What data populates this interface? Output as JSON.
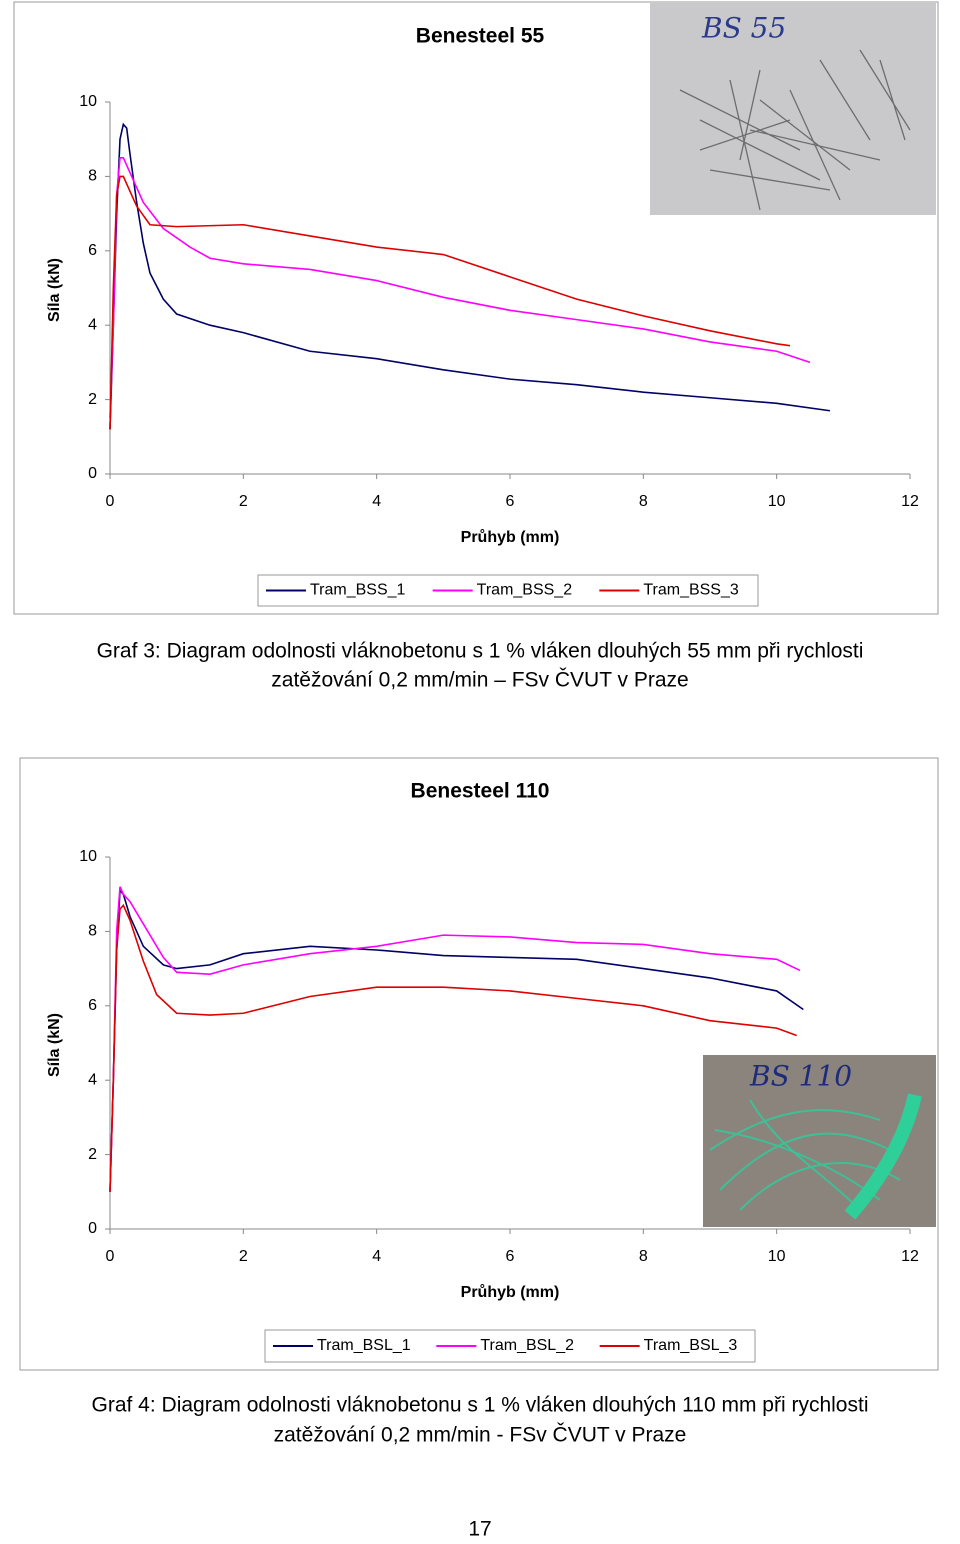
{
  "chart_data": [
    {
      "type": "line",
      "title": "Benesteel 55",
      "ylabel": "Síla (kN)",
      "xlabel": "Průhyb  (mm)",
      "xlim": [
        0,
        12
      ],
      "ylim": [
        0,
        10
      ],
      "xticks": [
        0,
        2,
        4,
        6,
        8,
        10,
        12
      ],
      "yticks": [
        0,
        2,
        4,
        6,
        8,
        10
      ],
      "grid": false,
      "legend": "bottom",
      "photo_label": "BS 55",
      "series": [
        {
          "name": "Tram_BSS_1",
          "color": "#000066",
          "x": [
            0,
            0.05,
            0.1,
            0.15,
            0.2,
            0.25,
            0.3,
            0.4,
            0.5,
            0.6,
            0.8,
            1.0,
            1.5,
            2,
            3,
            4,
            5,
            6,
            7,
            8,
            9,
            10,
            10.8
          ],
          "values": [
            1.2,
            4,
            7,
            9,
            9.4,
            9.3,
            8.6,
            7.3,
            6.2,
            5.4,
            4.7,
            4.3,
            4.0,
            3.8,
            3.3,
            3.1,
            2.8,
            2.55,
            2.4,
            2.2,
            2.05,
            1.9,
            1.7
          ]
        },
        {
          "name": "Tram_BSS_2",
          "color": "#ff00ff",
          "x": [
            0,
            0.05,
            0.1,
            0.15,
            0.2,
            0.3,
            0.5,
            0.8,
            1.2,
            1.5,
            2,
            3,
            4,
            5,
            6,
            7,
            8,
            9,
            10,
            10.5
          ],
          "values": [
            1.5,
            4,
            7.5,
            8.5,
            8.5,
            8.1,
            7.3,
            6.6,
            6.1,
            5.8,
            5.65,
            5.5,
            5.2,
            4.75,
            4.4,
            4.15,
            3.9,
            3.55,
            3.3,
            3.0
          ]
        },
        {
          "name": "Tram_BSS_3",
          "color": "#dd0000",
          "x": [
            0,
            0.05,
            0.1,
            0.15,
            0.2,
            0.3,
            0.4,
            0.6,
            1,
            2,
            3,
            4,
            5,
            6,
            7,
            8,
            9,
            10,
            10.2
          ],
          "values": [
            1.2,
            5,
            7.5,
            8.0,
            8.0,
            7.6,
            7.2,
            6.7,
            6.65,
            6.7,
            6.4,
            6.1,
            5.9,
            5.3,
            4.7,
            4.25,
            3.85,
            3.5,
            3.45
          ]
        }
      ]
    },
    {
      "type": "line",
      "title": "Benesteel 110",
      "ylabel": "Síla (kN)",
      "xlabel": "Průhyb  (mm)",
      "xlim": [
        0,
        12
      ],
      "ylim": [
        0,
        10
      ],
      "xticks": [
        0,
        2,
        4,
        6,
        8,
        10,
        12
      ],
      "yticks": [
        0,
        2,
        4,
        6,
        8,
        10
      ],
      "grid": false,
      "legend": "bottom",
      "photo_label": "BS 110",
      "series": [
        {
          "name": "Tram_BSL_1",
          "color": "#000066",
          "x": [
            0,
            0.05,
            0.1,
            0.15,
            0.2,
            0.3,
            0.5,
            0.8,
            1,
            1.5,
            2,
            3,
            4,
            5,
            6,
            7,
            8,
            9,
            10,
            10.4
          ],
          "values": [
            1,
            4,
            7.5,
            9.1,
            9.0,
            8.4,
            7.6,
            7.1,
            7.0,
            7.1,
            7.4,
            7.6,
            7.5,
            7.35,
            7.3,
            7.25,
            7.0,
            6.75,
            6.4,
            5.9
          ]
        },
        {
          "name": "Tram_BSL_2",
          "color": "#ff00ff",
          "x": [
            0,
            0.05,
            0.1,
            0.15,
            0.2,
            0.3,
            0.5,
            0.8,
            1,
            1.5,
            2,
            3,
            4,
            5,
            6,
            7,
            8,
            9,
            10,
            10.35
          ],
          "values": [
            1,
            4,
            8,
            9.2,
            9.0,
            8.8,
            8.2,
            7.3,
            6.9,
            6.85,
            7.1,
            7.4,
            7.6,
            7.9,
            7.85,
            7.7,
            7.65,
            7.4,
            7.25,
            6.95
          ]
        },
        {
          "name": "Tram_BSL_3",
          "color": "#dd0000",
          "x": [
            0,
            0.05,
            0.1,
            0.15,
            0.2,
            0.3,
            0.5,
            0.7,
            1,
            1.5,
            2,
            3,
            4,
            5,
            6,
            7,
            8,
            9,
            10,
            10.3
          ],
          "values": [
            1,
            4,
            7.5,
            8.6,
            8.7,
            8.3,
            7.2,
            6.3,
            5.8,
            5.75,
            5.8,
            6.25,
            6.5,
            6.5,
            6.4,
            6.2,
            6.0,
            5.6,
            5.4,
            5.2
          ]
        }
      ]
    }
  ],
  "captions": [
    [
      "Graf 3: Diagram odolnosti vláknobetonu s 1 % vláken dlouhých 55 mm při rychlosti",
      "zatěžování 0,2 mm/min – FSv ČVUT v Praze"
    ],
    [
      "Graf 4: Diagram odolnosti vláknobetonu s 1 % vláken dlouhých 110 mm při rychlosti",
      "zatěžování 0,2 mm/min - FSv ČVUT v Praze"
    ]
  ],
  "page_number": "17"
}
